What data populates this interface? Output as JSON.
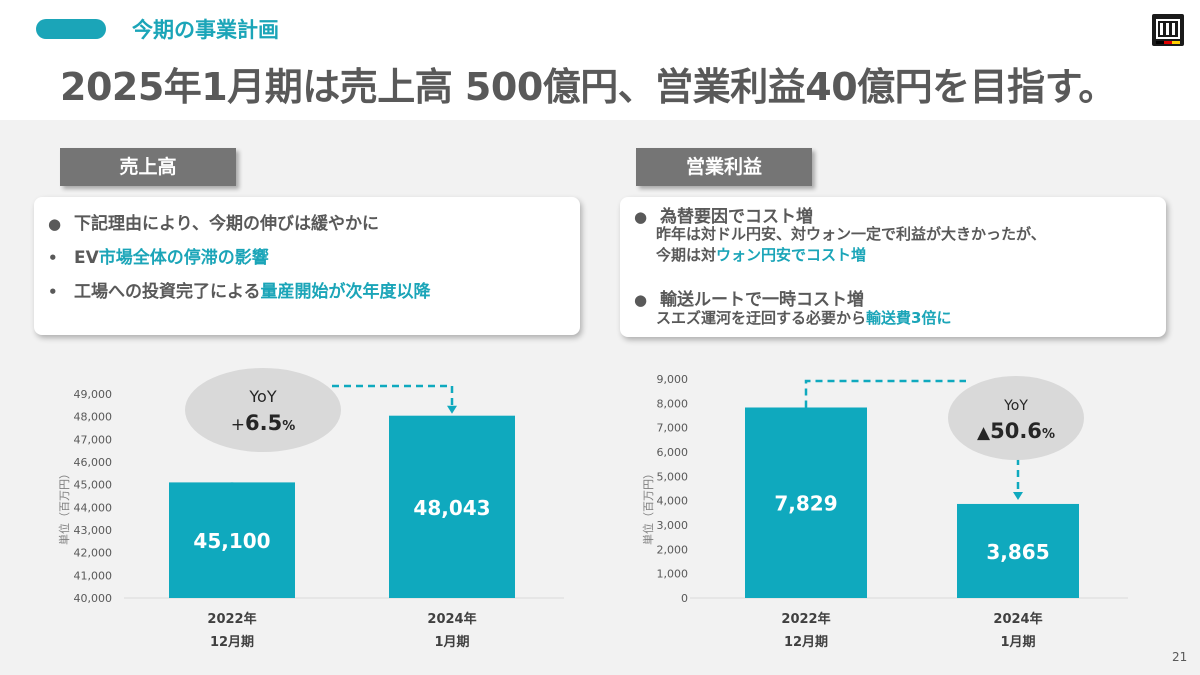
{
  "header": {
    "section_label": "今期の事業計画",
    "headline": "2025年1月期は売上高 500億円、営業利益40億円を目指す。"
  },
  "colors": {
    "accent": "#1ba5b8",
    "bar": "#0fa9be",
    "tag": "#757575",
    "text": "#595959"
  },
  "left_panel": {
    "tag": "売上高",
    "bullets": [
      {
        "mark": "●",
        "parts": [
          "下記理由により、今期の伸びは緩やかに"
        ]
      },
      {
        "mark": "•",
        "parts": [
          "EV",
          "市場全体の停滞の影響"
        ]
      },
      {
        "mark": "•",
        "parts": [
          "工場への投資完了による",
          "量産開始が次年度以降"
        ]
      }
    ]
  },
  "right_panel": {
    "tag": "営業利益",
    "items": [
      {
        "mark": "●",
        "title": "為替要因でコスト増",
        "line1": "昨年は対ドル円安、対ウォン一定で利益が大きかったが、",
        "line2_prefix": "今期は対",
        "line2_highlight": "ウォン円安でコスト増"
      },
      {
        "mark": "●",
        "title": "輸送ルートで一時コスト増",
        "line1_prefix": "スエズ運河を迂回する必要から",
        "line1_highlight": "輸送費3倍に"
      }
    ]
  },
  "chart_data": [
    {
      "type": "bar",
      "title": "売上高",
      "ylabel": "単位（百万円）",
      "categories": [
        [
          "2022年",
          "12月期"
        ],
        [
          "2024年",
          "1月期"
        ]
      ],
      "values": [
        45100,
        48043
      ],
      "value_labels": [
        "45,100",
        "48,043"
      ],
      "ylim": [
        40000,
        49000
      ],
      "yticks": [
        "40,000",
        "41,000",
        "42,000",
        "43,000",
        "44,000",
        "45,000",
        "46,000",
        "47,000",
        "48,000",
        "49,000"
      ],
      "yoy": {
        "label": "YoY",
        "prefix": "+",
        "value": "6.5",
        "unit": "%"
      }
    },
    {
      "type": "bar",
      "title": "営業利益",
      "ylabel": "単位（百万円）",
      "categories": [
        [
          "2022年",
          "12月期"
        ],
        [
          "2024年",
          "1月期"
        ]
      ],
      "values": [
        7829,
        3865
      ],
      "value_labels": [
        "7,829",
        "3,865"
      ],
      "ylim": [
        0,
        9000
      ],
      "yticks": [
        "0",
        "1,000",
        "2,000",
        "3,000",
        "4,000",
        "5,000",
        "6,000",
        "7,000",
        "8,000",
        "9,000"
      ],
      "yoy": {
        "label": "YoY",
        "prefix": "▲",
        "value": "50.6",
        "unit": "%"
      }
    }
  ],
  "page_number": "21"
}
